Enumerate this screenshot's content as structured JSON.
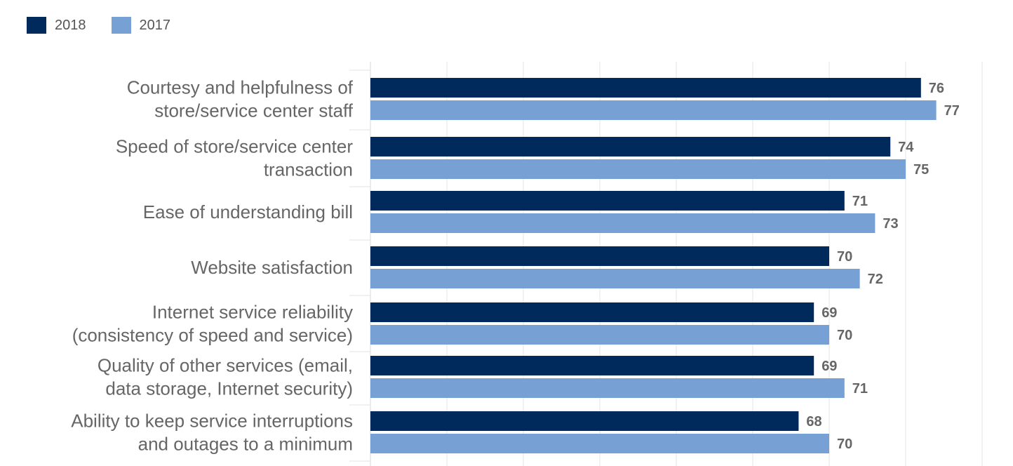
{
  "chart_data": {
    "type": "bar",
    "orientation": "horizontal",
    "categories": [
      [
        "Courtesy and helpfulness of",
        "store/service center staff"
      ],
      [
        "Speed of store/service center",
        "transaction"
      ],
      [
        "Ease of understanding bill"
      ],
      [
        "Website satisfaction"
      ],
      [
        "Internet service reliability",
        "(consistency of speed and service)"
      ],
      [
        "Quality of other services (email,",
        "data storage, Internet security)"
      ],
      [
        "Ability to keep service interruptions",
        "and outages to a minimum"
      ]
    ],
    "series": [
      {
        "name": "2018",
        "color": "#002a5c",
        "values": [
          76,
          74,
          71,
          70,
          69,
          69,
          68
        ]
      },
      {
        "name": "2017",
        "color": "#77a0d4",
        "values": [
          77,
          75,
          73,
          72,
          70,
          71,
          70
        ]
      }
    ],
    "title": "",
    "xlabel": "",
    "ylabel": "",
    "xlim": [
      40,
      80
    ],
    "grid": true,
    "legend": "top-left",
    "label_color": "#666666",
    "value_label_color": "#666666",
    "grid_color": "#e6e6e6"
  }
}
